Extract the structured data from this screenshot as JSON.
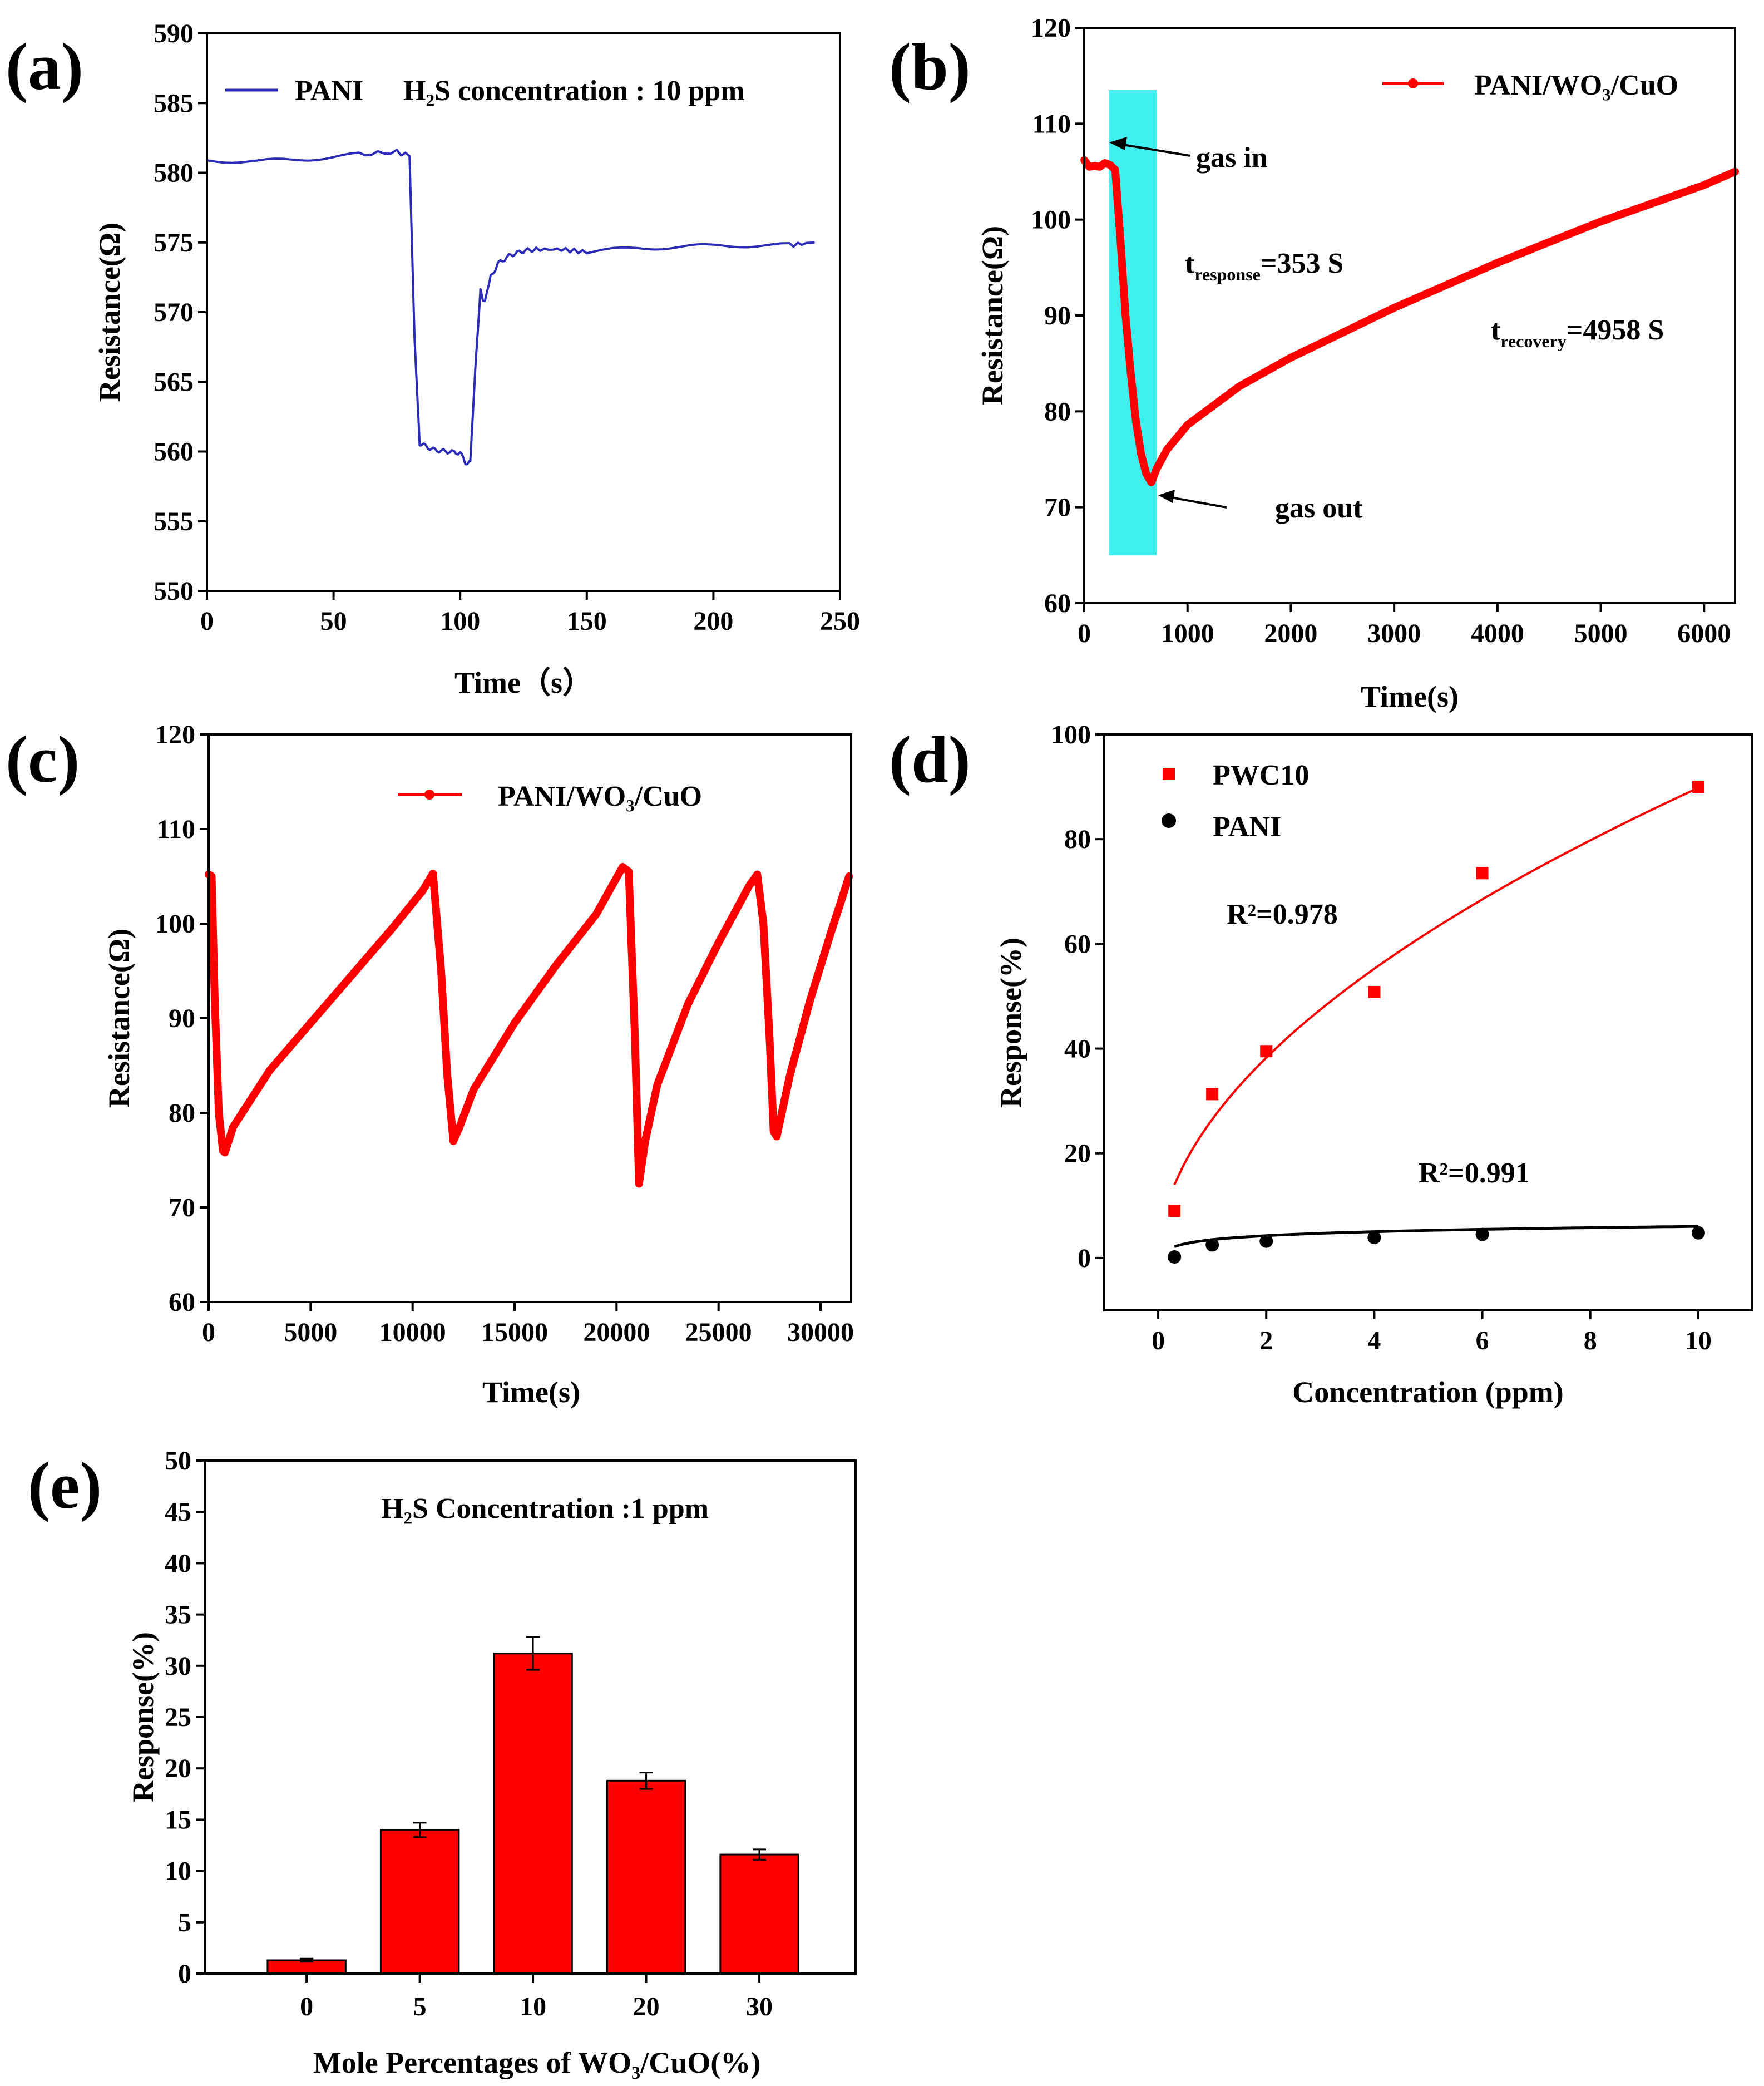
{
  "chart_data": [
    {
      "panel": "(a)",
      "type": "line",
      "xlabel": "Time（s）",
      "ylabel": "Resistance(Ω)",
      "xlim": [
        0,
        250
      ],
      "ylim": [
        550,
        590
      ],
      "xticks": [
        "0",
        "50",
        "100",
        "150",
        "200",
        "250"
      ],
      "yticks": [
        "550",
        "555",
        "560",
        "565",
        "570",
        "575",
        "580",
        "585",
        "590"
      ],
      "color": "#2b2bb8",
      "series": [
        {
          "name": "PANI",
          "x": [
            0,
            20,
            40,
            60,
            75,
            80,
            82,
            84,
            86,
            90,
            95,
            100,
            102,
            104,
            106,
            108,
            109,
            110,
            112,
            115,
            120,
            125,
            130,
            140,
            150,
            170,
            190,
            210,
            230,
            240
          ],
          "y": [
            580.9,
            580.8,
            581.0,
            581.3,
            581.5,
            581.2,
            568.0,
            560.6,
            560.4,
            560.1,
            560.0,
            559.9,
            559.2,
            559.3,
            566.0,
            571.5,
            570.8,
            571.0,
            572.5,
            573.5,
            574.1,
            574.4,
            574.5,
            574.5,
            574.3,
            574.6,
            574.7,
            574.8,
            574.8,
            575.0
          ]
        }
      ],
      "annotations": [
        "PANI",
        "H₂S concentration : 10 ppm"
      ]
    },
    {
      "panel": "(b)",
      "type": "line",
      "xlabel": "Time(s)",
      "ylabel": "Resistance(Ω)",
      "xlim": [
        0,
        6300
      ],
      "ylim": [
        60,
        120
      ],
      "xticks": [
        "0",
        "1000",
        "2000",
        "3000",
        "4000",
        "5000",
        "6000"
      ],
      "yticks": [
        "60",
        "70",
        "80",
        "90",
        "100",
        "110",
        "120"
      ],
      "color": "#ff0000",
      "highlight": {
        "x_from": 240,
        "x_to": 700,
        "y_from": 65,
        "y_to": 113.5,
        "color": "#3ef0f0"
      },
      "series": [
        {
          "name": "PANI/WO₃/CuO",
          "x": [
            0,
            50,
            100,
            150,
            200,
            250,
            300,
            350,
            400,
            450,
            500,
            550,
            600,
            650,
            700,
            800,
            1000,
            1500,
            2000,
            3000,
            4000,
            5000,
            6000,
            6300
          ],
          "y": [
            106.2,
            105.5,
            105.6,
            105.5,
            105.9,
            105.7,
            105.2,
            98.0,
            90.0,
            84.0,
            79.0,
            75.6,
            73.5,
            72.6,
            74.0,
            76.0,
            78.6,
            82.6,
            85.6,
            90.8,
            95.5,
            99.8,
            103.6,
            105.0
          ]
        }
      ],
      "annotations": [
        "gas in",
        "gas out",
        "t",
        "response",
        "=353 S",
        "t",
        "recovery",
        "=4958 S"
      ]
    },
    {
      "panel": "(c)",
      "type": "line",
      "xlabel": "Time(s)",
      "ylabel": "Resistance(Ω)",
      "xlim": [
        0,
        31500
      ],
      "ylim": [
        60,
        120
      ],
      "xticks": [
        "0",
        "5000",
        "10000",
        "15000",
        "20000",
        "25000",
        "30000"
      ],
      "yticks": [
        "60",
        "70",
        "80",
        "90",
        "100",
        "110",
        "120"
      ],
      "color": "#ff0000",
      "series": [
        {
          "name": "PANI/WO₃/CuO",
          "x": [
            0,
            150,
            300,
            500,
            700,
            800,
            1200,
            3000,
            5000,
            7000,
            9000,
            10500,
            11000,
            11400,
            11700,
            12000,
            12300,
            13000,
            15000,
            17000,
            19000,
            20300,
            20600,
            20900,
            21100,
            21400,
            22000,
            23500,
            25000,
            26500,
            26900,
            27200,
            27500,
            27700,
            27850,
            28500,
            29500,
            30500,
            31400
          ],
          "y": [
            105.2,
            105.0,
            92.0,
            80.0,
            76.0,
            75.8,
            78.5,
            84.5,
            89.5,
            94.5,
            99.5,
            103.5,
            105.3,
            95.0,
            84.0,
            77.0,
            78.5,
            82.5,
            89.5,
            95.5,
            101.0,
            106.0,
            105.5,
            88.0,
            72.5,
            77.0,
            83.0,
            91.5,
            98.0,
            104.0,
            105.2,
            100.0,
            88.0,
            78.0,
            77.5,
            84.0,
            92.0,
            99.0,
            105.0
          ]
        }
      ],
      "annotations": [
        "PANI/WO₃/CuO"
      ]
    },
    {
      "panel": "(d)",
      "type": "scatter",
      "xlabel": "Concentration (ppm)",
      "ylabel": "Response(%)",
      "xlim": [
        -1,
        11
      ],
      "ylim": [
        -10,
        100
      ],
      "xticks": [
        "0",
        "2",
        "4",
        "6",
        "8",
        "10"
      ],
      "yticks": [
        "0",
        "20",
        "40",
        "60",
        "80",
        "100"
      ],
      "series": [
        {
          "name": "PWC10",
          "color": "#ff0000",
          "marker": "square",
          "x": [
            0.3,
            1,
            2,
            4,
            6,
            10
          ],
          "y": [
            9,
            31.3,
            39.5,
            50.8,
            73.5,
            90
          ],
          "fit": "power",
          "fit_a": 26.5,
          "fit_b": 0.53,
          "r2": "R²=0.978"
        },
        {
          "name": "PANI",
          "color": "#000000",
          "marker": "circle",
          "x": [
            0.3,
            1,
            2,
            4,
            6,
            10
          ],
          "y": [
            0.2,
            2.5,
            3.2,
            3.9,
            4.5,
            4.8
          ],
          "fit": "log",
          "fit_a": 2.3,
          "fit_b": 1.1,
          "r2": "R²=0.991"
        }
      ]
    },
    {
      "panel": "(e)",
      "type": "bar",
      "xlabel": "Mole Percentages of WO₃/CuO(%)",
      "ylabel": "Response(%)",
      "ylim": [
        0,
        50
      ],
      "yticks": [
        "0",
        "5",
        "10",
        "15",
        "20",
        "25",
        "30",
        "35",
        "40",
        "45",
        "50"
      ],
      "categories": [
        "0",
        "5",
        "10",
        "20",
        "30"
      ],
      "values": [
        1.3,
        14.0,
        31.2,
        18.8,
        11.6
      ],
      "errors": [
        0.15,
        0.7,
        1.6,
        0.8,
        0.5
      ],
      "color": "#ff0000",
      "annotation": "H₂S Concentration :1 ppm"
    }
  ]
}
